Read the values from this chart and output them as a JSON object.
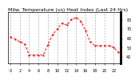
{
  "title": "Milw. Temperature (vs) Heat Index (Last 24 Hrs)",
  "bg_color": "#ffffff",
  "plot_bg_color": "#ffffff",
  "line_color": "#ff0000",
  "grid_color": "#808080",
  "border_color": "#000000",
  "hours": [
    0,
    1,
    2,
    3,
    4,
    5,
    6,
    7,
    8,
    9,
    10,
    11,
    12,
    13,
    14,
    15,
    16,
    17,
    18,
    19,
    20,
    21,
    22,
    23
  ],
  "temp": [
    61,
    59,
    56,
    54,
    42,
    42,
    42,
    42,
    53,
    64,
    70,
    76,
    74,
    80,
    82,
    78,
    68,
    56,
    52,
    52,
    52,
    52,
    50,
    45
  ],
  "ylim": [
    33,
    88
  ],
  "yticks": [
    40,
    50,
    60,
    70,
    80
  ],
  "ytick_labels": [
    "40",
    "50",
    "60",
    "70",
    "80"
  ],
  "xticks": [
    0,
    2,
    4,
    6,
    8,
    10,
    12,
    14,
    16,
    18,
    20,
    22
  ],
  "xtick_labels": [
    "0",
    "2",
    "4",
    "6",
    "8",
    "10",
    "12",
    "14",
    "16",
    "18",
    "20",
    "22"
  ],
  "title_fontsize": 4.5,
  "tick_fontsize": 3.5,
  "line_width": 0.7,
  "marker_size": 1.2
}
